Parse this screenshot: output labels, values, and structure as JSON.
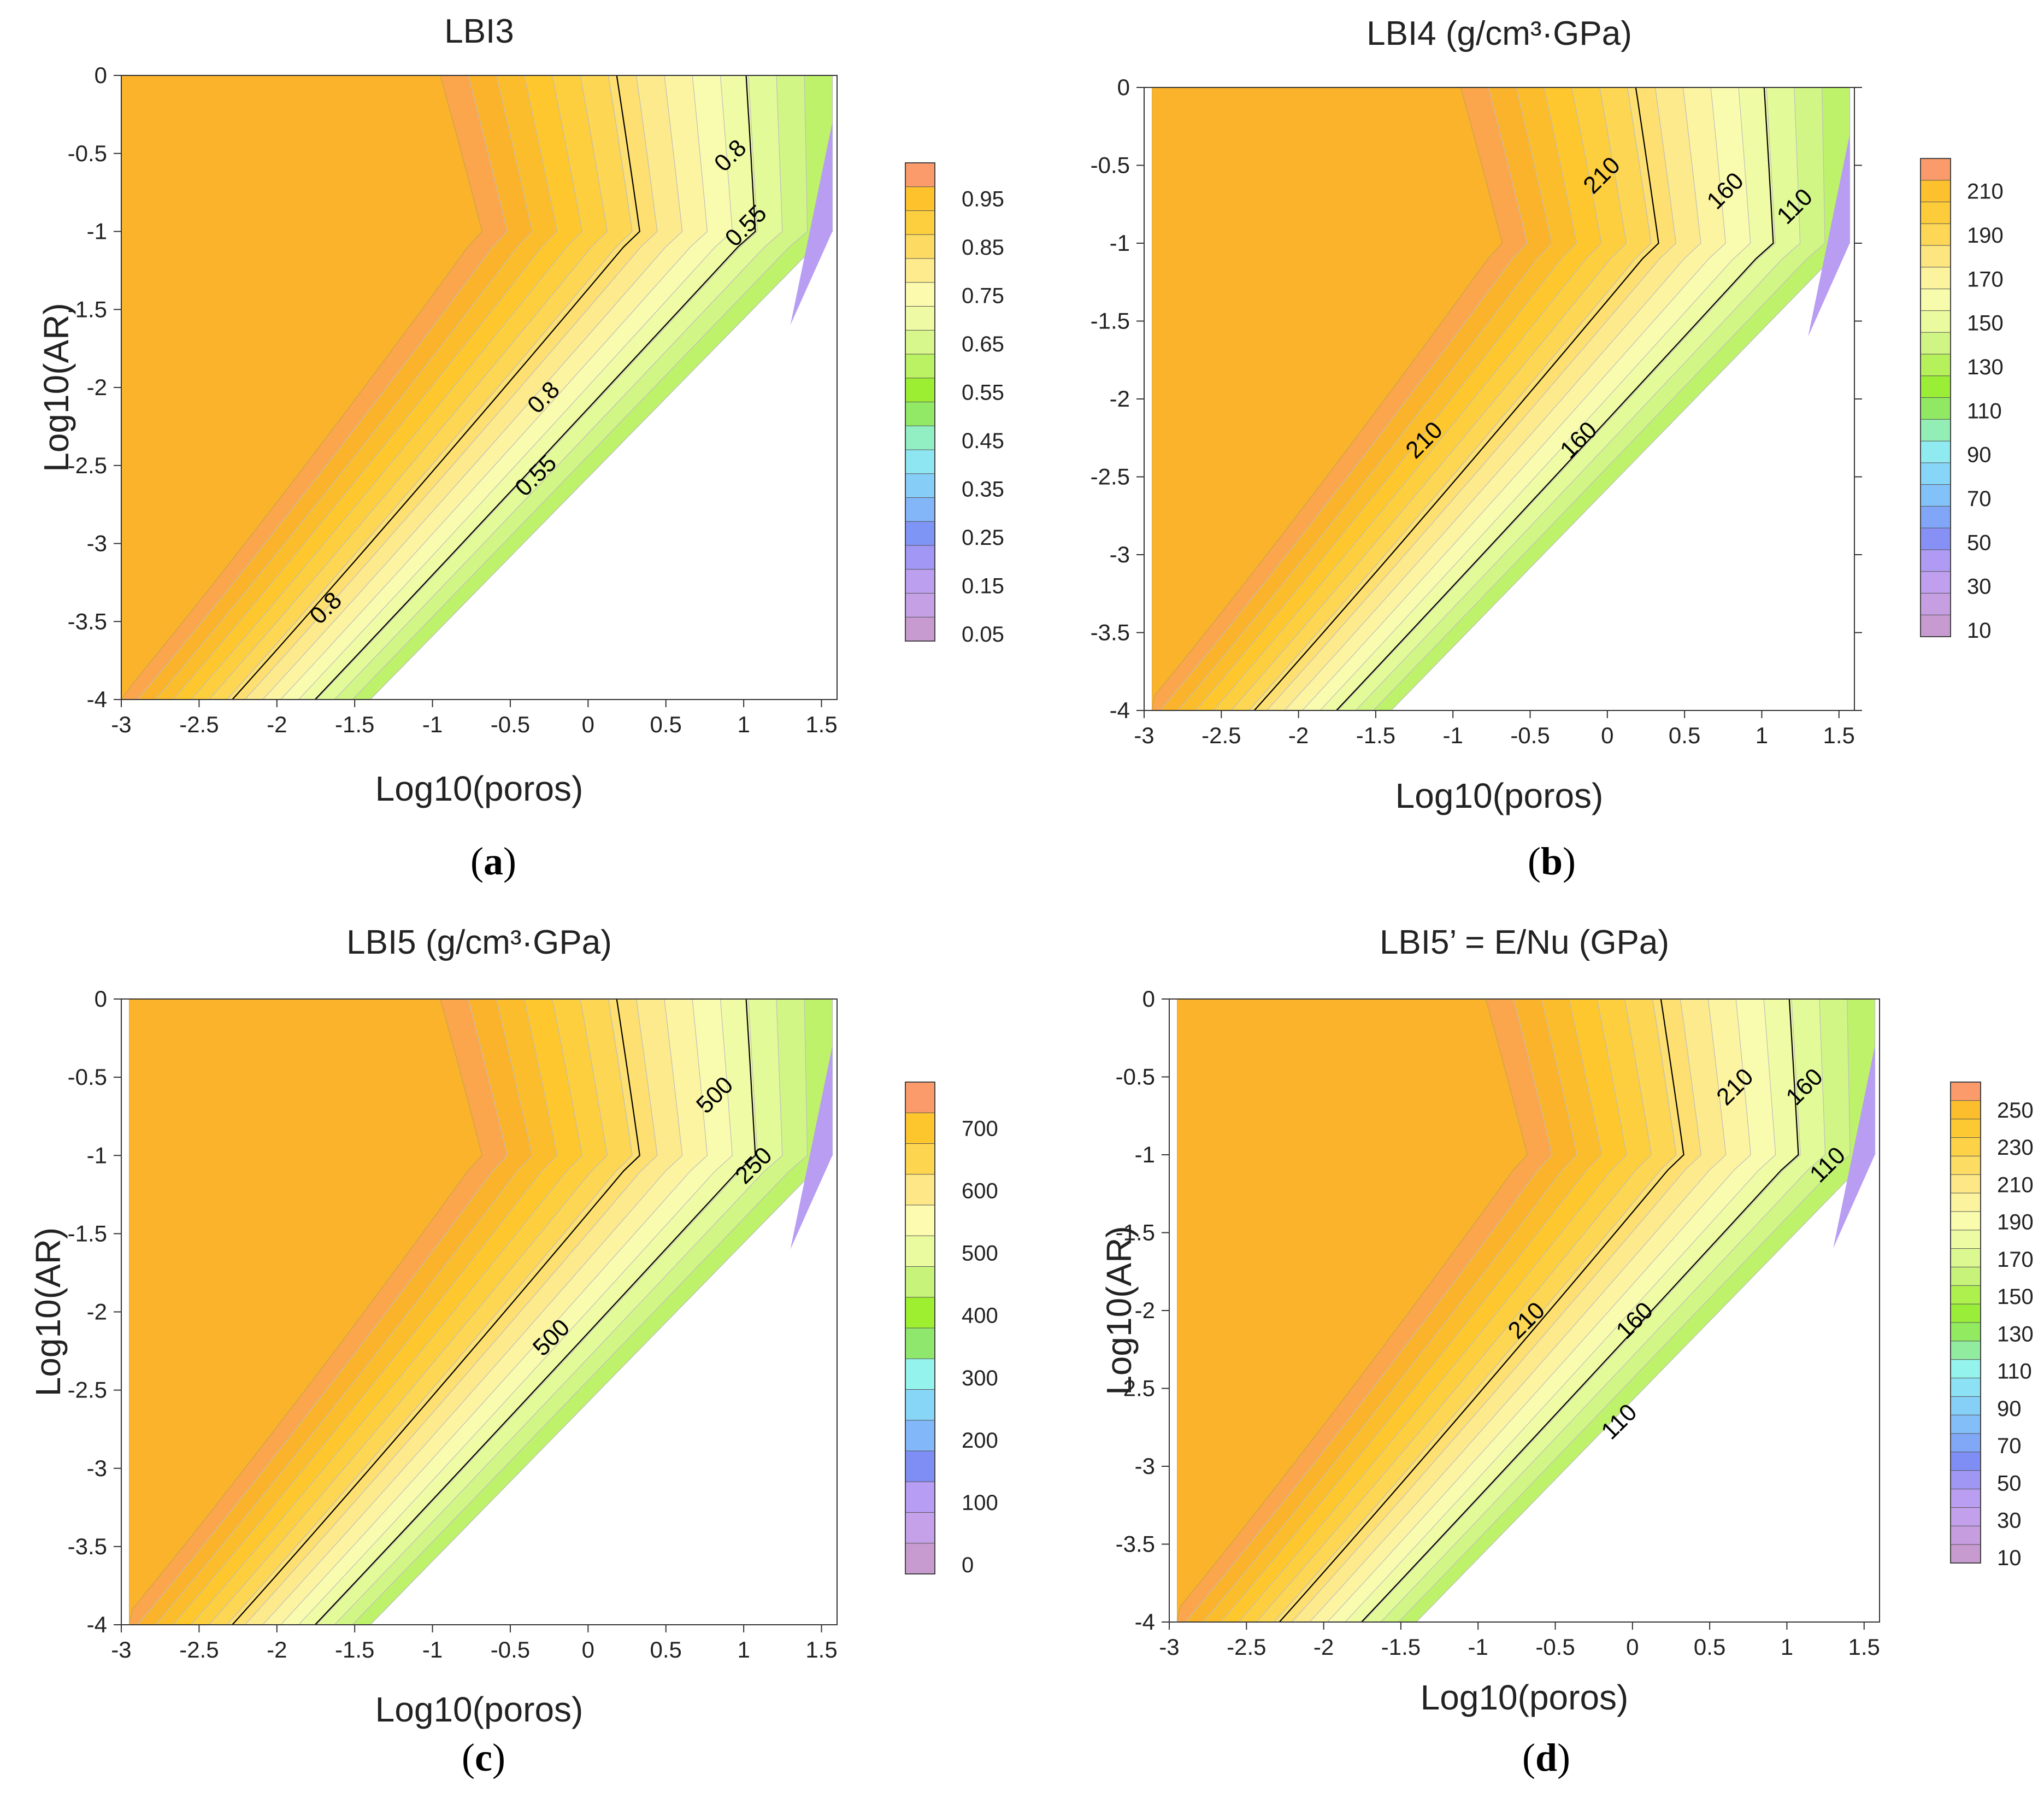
{
  "chart_data": [
    {
      "id": "a",
      "type": "contour",
      "title": "LBI3",
      "xlabel": "Log10(poros)",
      "ylabel": "Log10(AR)",
      "caption": "a",
      "xlim": [
        -3,
        1.6
      ],
      "ylim": [
        -4,
        0
      ],
      "xticks": [
        "-3",
        "-2.5",
        "-2",
        "-1.5",
        "-1",
        "-0.5",
        "0",
        "0.5",
        "1",
        "1.5"
      ],
      "yticks": [
        "0",
        "-0.5",
        "-1",
        "-1.5",
        "-2",
        "-2.5",
        "-3",
        "-3.5",
        "-4"
      ],
      "domain_left_edge_x": -3,
      "colorbar_ticks": [
        "0.95",
        "0.85",
        "0.75",
        "0.65",
        "0.55",
        "0.45",
        "0.35",
        "0.25",
        "0.15",
        "0.05"
      ],
      "contour_labels": [
        {
          "text": "0.8",
          "x": 0.95,
          "y": -0.55
        },
        {
          "text": "0.8",
          "x": -0.25,
          "y": -2.1
        },
        {
          "text": "0.8",
          "x": -1.65,
          "y": -3.45
        },
        {
          "text": "0.55",
          "x": 1.05,
          "y": -1.0
        },
        {
          "text": "0.55",
          "x": -0.3,
          "y": -2.6
        }
      ]
    },
    {
      "id": "b",
      "type": "contour",
      "title": "LBI4 (g/cm³·GPa)",
      "xlabel": "Log10(poros)",
      "ylabel": "",
      "caption": "b",
      "xlim": [
        -3,
        1.6
      ],
      "ylim": [
        -4,
        0
      ],
      "xticks": [
        "-3",
        "-2.5",
        "-2",
        "-1.5",
        "-1",
        "-0.5",
        "0",
        "0.5",
        "1",
        "1.5"
      ],
      "yticks": [
        "0",
        "-0.5",
        "-1",
        "-1.5",
        "-2",
        "-2.5",
        "-3",
        "-3.5",
        "-4"
      ],
      "domain_left_edge_x": -2.95,
      "colorbar_ticks": [
        "210",
        "190",
        "170",
        "150",
        "130",
        "110",
        "90",
        "70",
        "50",
        "30",
        "10"
      ],
      "contour_labels": [
        {
          "text": "210",
          "x": 0.0,
          "y": -0.6
        },
        {
          "text": "210",
          "x": -1.15,
          "y": -2.3
        },
        {
          "text": "160",
          "x": 0.8,
          "y": -0.7
        },
        {
          "text": "160",
          "x": -0.15,
          "y": -2.3
        },
        {
          "text": "110",
          "x": 1.25,
          "y": -0.8
        }
      ]
    },
    {
      "id": "c",
      "type": "contour",
      "title": "LBI5 (g/cm³·GPa)",
      "xlabel": "Log10(poros)",
      "ylabel": "Log10(AR)",
      "caption": "c",
      "xlim": [
        -3,
        1.6
      ],
      "ylim": [
        -4,
        0
      ],
      "xticks": [
        "-3",
        "-2.5",
        "-2",
        "-1.5",
        "-1",
        "-0.5",
        "0",
        "0.5",
        "1",
        "1.5"
      ],
      "yticks": [
        "0",
        "-0.5",
        "-1",
        "-1.5",
        "-2",
        "-2.5",
        "-3",
        "-3.5",
        "-4"
      ],
      "domain_left_edge_x": -2.95,
      "colorbar_ticks": [
        "700",
        "600",
        "500",
        "400",
        "300",
        "200",
        "100",
        "0"
      ],
      "contour_labels": [
        {
          "text": "500",
          "x": 0.85,
          "y": -0.65
        },
        {
          "text": "500",
          "x": -0.2,
          "y": -2.2
        },
        {
          "text": "250",
          "x": 1.1,
          "y": -1.1
        }
      ]
    },
    {
      "id": "d",
      "type": "contour",
      "title": "LBI5’ = E/Nu (GPa)",
      "xlabel": "Log10(poros)",
      "ylabel": "Log10(AR)",
      "caption": "d",
      "xlim": [
        -3,
        1.6
      ],
      "ylim": [
        -4,
        0
      ],
      "xticks": [
        "-3",
        "-2.5",
        "-2",
        "-1.5",
        "-1",
        "-0.5",
        "0",
        "0.5",
        "1",
        "1.5"
      ],
      "yticks": [
        "0",
        "-0.5",
        "-1",
        "-1.5",
        "-2",
        "-2.5",
        "-3",
        "-3.5",
        "-4"
      ],
      "domain_left_edge_x": -2.95,
      "colorbar_ticks": [
        "250",
        "230",
        "210",
        "190",
        "170",
        "150",
        "130",
        "110",
        "90",
        "70",
        "50",
        "30",
        "10"
      ],
      "contour_labels": [
        {
          "text": "210",
          "x": 0.7,
          "y": -0.6
        },
        {
          "text": "210",
          "x": -0.65,
          "y": -2.1
        },
        {
          "text": "160",
          "x": 1.15,
          "y": -0.6
        },
        {
          "text": "160",
          "x": 0.05,
          "y": -2.1
        },
        {
          "text": "110",
          "x": 1.3,
          "y": -1.1
        },
        {
          "text": "110",
          "x": -0.05,
          "y": -2.75
        }
      ]
    }
  ],
  "colors": {
    "plateau": "#fbb32c",
    "band_low": "#c79ad0",
    "band_high": "#fb9a6a",
    "contour_line": "#000000",
    "axis": "#333333"
  }
}
